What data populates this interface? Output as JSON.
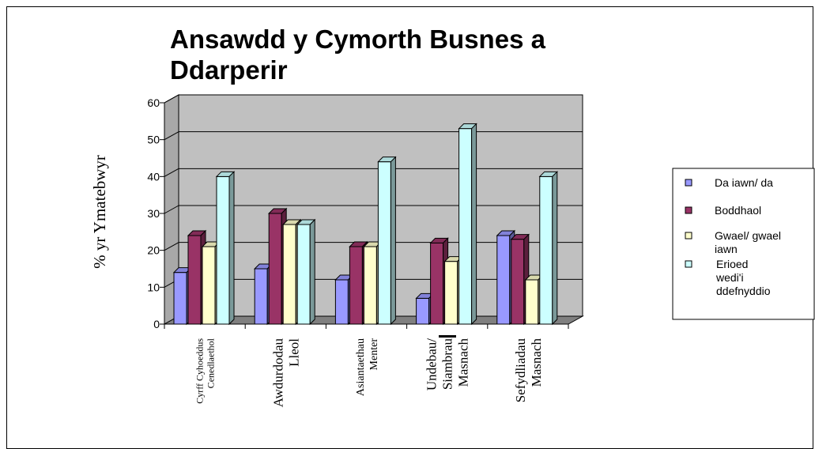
{
  "chart_data": {
    "type": "bar",
    "title_lines": [
      "Ansawdd y Cymorth Busnes a",
      "Ddarperir"
    ],
    "ylabel": "% yr Ymatebwyr",
    "xlabel": "",
    "ylim": [
      0,
      60
    ],
    "yticks": [
      "0",
      "10",
      "20",
      "30",
      "40",
      "50",
      "60"
    ],
    "grid": true,
    "legend_position": "right",
    "categories": [
      [
        "Cyrff Cyhoeddus",
        "Cenedlaethol"
      ],
      [
        "Awdurdodau",
        "Lleol"
      ],
      [
        "Asiantaethau",
        "Menter"
      ],
      [
        "Undebau/",
        "Siambrau",
        "Masnach"
      ],
      [
        "Sefydliadau",
        "Masnach"
      ]
    ],
    "series": [
      {
        "name_lines": [
          "Da iawn/ da"
        ],
        "color": "#9999ff",
        "values": [
          14,
          15,
          12,
          7,
          24
        ]
      },
      {
        "name_lines": [
          "Boddhaol"
        ],
        "color": "#993366",
        "values": [
          24,
          30,
          21,
          22,
          23
        ]
      },
      {
        "name_lines": [
          "Gwael/ gwael",
          "iawn"
        ],
        "color": "#ffffcc",
        "values": [
          21,
          27,
          21,
          17,
          12
        ]
      },
      {
        "name_lines": [
          "Erioed",
          "wedi'i",
          "ddefnyddio"
        ],
        "color": "#ccffff",
        "values": [
          40,
          27,
          44,
          53,
          40
        ]
      }
    ],
    "plot_background": "#c0c0c0",
    "floor_color": "#808080"
  }
}
